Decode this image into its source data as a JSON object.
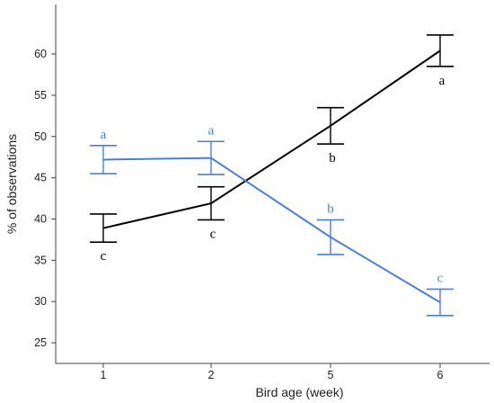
{
  "chart_data": {
    "type": "line",
    "title": "",
    "xlabel": "Bird age (week)",
    "ylabel": "% of observations",
    "categories": [
      "1",
      "2",
      "5",
      "6"
    ],
    "ylim": [
      22.5,
      66
    ],
    "yticks": [
      "25",
      "30",
      "35",
      "40",
      "45",
      "50",
      "55",
      "60"
    ],
    "grid": false,
    "legend": "none",
    "series": [
      {
        "color": "#000000",
        "values": [
          38.9,
          41.9,
          51.3,
          60.4
        ],
        "error_low": [
          37.2,
          39.9,
          49.1,
          58.5
        ],
        "error_high": [
          40.6,
          43.9,
          53.5,
          62.3
        ],
        "labels": [
          "c",
          "c",
          "b",
          "a"
        ],
        "label_side": [
          "below",
          "below",
          "below",
          "below"
        ]
      },
      {
        "color": "#4a7fd8",
        "values": [
          47.2,
          47.4,
          37.8,
          29.9
        ],
        "error_low": [
          45.5,
          45.4,
          35.7,
          28.3
        ],
        "error_high": [
          48.9,
          49.4,
          39.9,
          31.5
        ],
        "labels": [
          "a",
          "a",
          "b",
          "c"
        ],
        "label_side": [
          "above",
          "above",
          "above",
          "above"
        ]
      }
    ]
  }
}
